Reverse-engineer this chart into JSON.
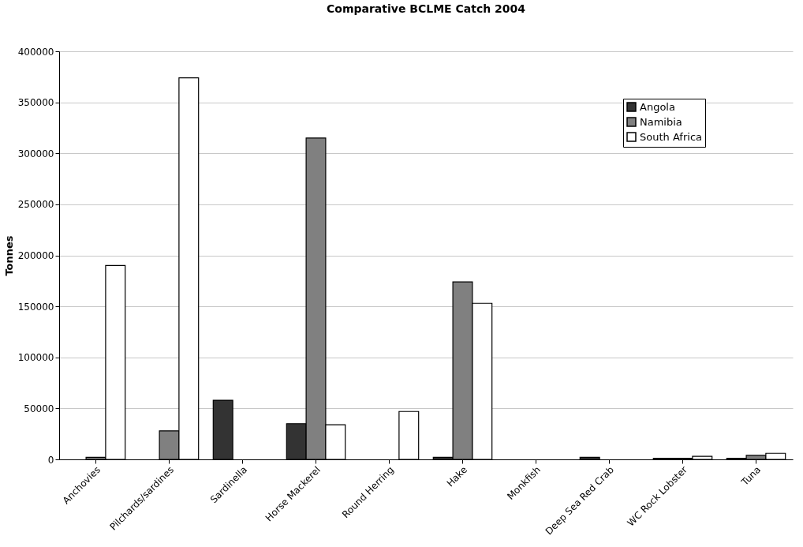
{
  "chart_data": {
    "type": "bar",
    "title": "Comparative BCLME Catch 2004",
    "ylabel": "Tonnes",
    "categories": [
      "Anchovies",
      "Pilchards/sardines",
      "Sardinella",
      "Horse Mackerel",
      "Round Herring",
      "Hake",
      "Monkfish",
      "Deep Sea Red Crab",
      "WC Rock Lobster",
      "Tuna"
    ],
    "series": [
      {
        "name": "Angola",
        "color": "#333333",
        "values": [
          null,
          null,
          58000,
          35000,
          null,
          2000,
          null,
          2000,
          1000,
          1000
        ]
      },
      {
        "name": "Namibia",
        "color": "#808080",
        "values": [
          2000,
          28000,
          null,
          315000,
          null,
          174000,
          null,
          null,
          1000,
          4000
        ]
      },
      {
        "name": "South Africa",
        "color": "#ffffff",
        "values": [
          190000,
          374000,
          null,
          34000,
          47000,
          153000,
          null,
          null,
          3000,
          6000
        ]
      }
    ],
    "ylim": [
      0,
      400000
    ],
    "yticks": [
      0,
      50000,
      100000,
      150000,
      200000,
      250000,
      300000,
      350000,
      400000
    ],
    "grid": "y",
    "legend": "top right"
  }
}
